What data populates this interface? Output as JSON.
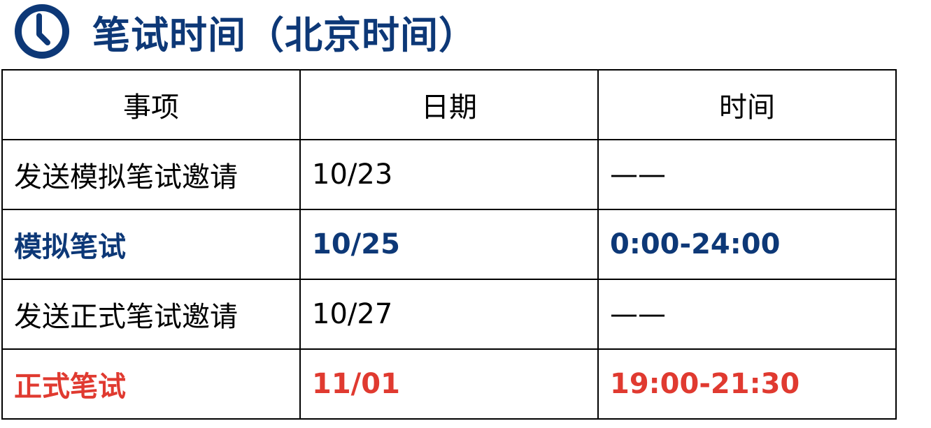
{
  "header": {
    "title": "笔试时间（北京时间）",
    "icon": "clock-icon",
    "color": "#0d3877"
  },
  "table": {
    "columns": [
      "事项",
      "日期",
      "时间"
    ],
    "rows": [
      {
        "item": "发送模拟笔试邀请",
        "date": "10/23",
        "time": "——"
      },
      {
        "item": "模拟笔试",
        "date": "10/25",
        "time": "0:00-24:00",
        "highlight": "#0d3877"
      },
      {
        "item": "发送正式笔试邀请",
        "date": "10/27",
        "time": "——"
      },
      {
        "item": "正式笔试",
        "date": "11/01",
        "time": "19:00-21:30",
        "highlight": "#e03a30"
      }
    ]
  }
}
